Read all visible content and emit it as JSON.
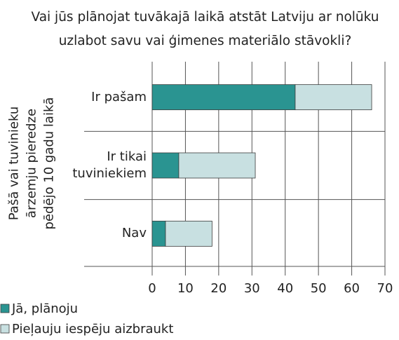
{
  "chart_data": {
    "type": "bar",
    "stacked": true,
    "orientation": "horizontal",
    "title": "Vai jūs plānojat tuvākajā laikā atstāt Latviju ar nolūku uzlabot savu vai ģimenes materiālo stāvokli?",
    "ylabel": "Pašā vai tuvinieku ārzemju pieredze pēdējo 10 gadu laikā",
    "categories": [
      "Ir pašam",
      "Ir tikai tuviniekiem",
      "Nav"
    ],
    "series": [
      {
        "name": "Jā, plānoju",
        "color": "#2a9491",
        "values": [
          43,
          8,
          4
        ]
      },
      {
        "name": "Pieļauju iespēju aizbraukt",
        "color": "#c8e0e1",
        "values": [
          23,
          23,
          14
        ]
      }
    ],
    "xlim": [
      0,
      70
    ],
    "xticks": [
      0,
      10,
      20,
      30,
      40,
      50,
      60,
      70
    ],
    "grid": true,
    "legend": "bottom-left"
  }
}
